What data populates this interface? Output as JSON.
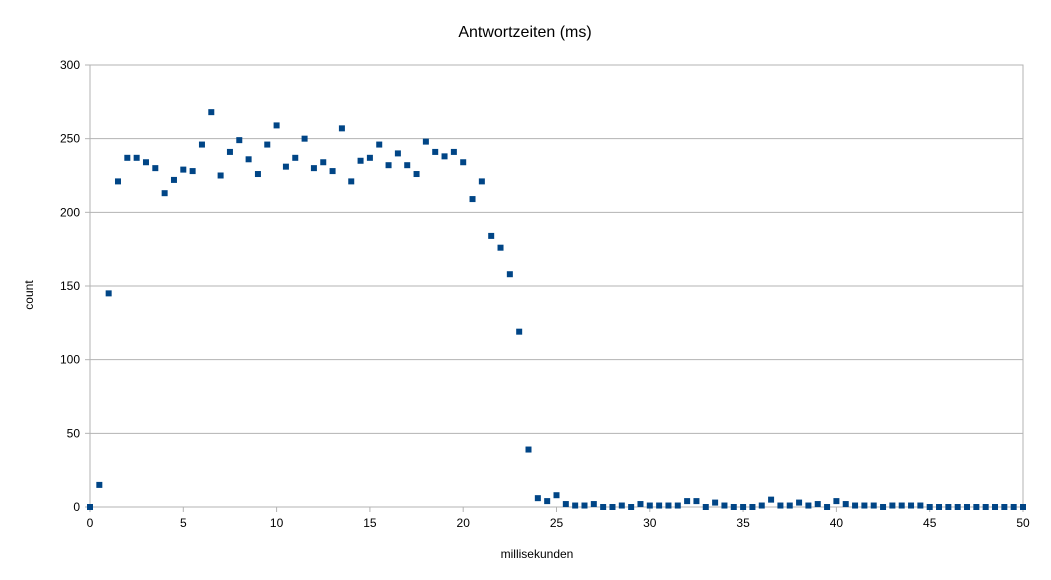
{
  "chart_data": {
    "type": "scatter",
    "title": "Antwortzeiten (ms)",
    "xlabel": "millisekunden",
    "ylabel": "count",
    "xlim": [
      0,
      50
    ],
    "ylim": [
      0,
      300
    ],
    "xticks": [
      0,
      5,
      10,
      15,
      20,
      25,
      30,
      35,
      40,
      45,
      50
    ],
    "yticks": [
      0,
      50,
      100,
      150,
      200,
      250,
      300
    ],
    "grid": {
      "horizontal": true,
      "vertical": false
    },
    "legend": "none",
    "marker_color": "#004586",
    "gridline_color": "#b3b3b3",
    "series": [
      {
        "points": [
          [
            0,
            0
          ],
          [
            0.5,
            15
          ],
          [
            1,
            145
          ],
          [
            1.5,
            221
          ],
          [
            2,
            237
          ],
          [
            2.5,
            237
          ],
          [
            3,
            234
          ],
          [
            3.5,
            230
          ],
          [
            4,
            213
          ],
          [
            4.5,
            222
          ],
          [
            5,
            229
          ],
          [
            5.5,
            228
          ],
          [
            6,
            246
          ],
          [
            6.5,
            268
          ],
          [
            7,
            225
          ],
          [
            7.5,
            241
          ],
          [
            8,
            249
          ],
          [
            8.5,
            236
          ],
          [
            9,
            226
          ],
          [
            9.5,
            246
          ],
          [
            10,
            259
          ],
          [
            10.5,
            231
          ],
          [
            11,
            237
          ],
          [
            11.5,
            250
          ],
          [
            12,
            230
          ],
          [
            12.5,
            234
          ],
          [
            13,
            228
          ],
          [
            13.5,
            257
          ],
          [
            14,
            221
          ],
          [
            14.5,
            235
          ],
          [
            15,
            237
          ],
          [
            15.5,
            246
          ],
          [
            16,
            232
          ],
          [
            16.5,
            240
          ],
          [
            17,
            232
          ],
          [
            17.5,
            226
          ],
          [
            18,
            248
          ],
          [
            18.5,
            241
          ],
          [
            19,
            238
          ],
          [
            19.5,
            241
          ],
          [
            20,
            234
          ],
          [
            20.5,
            209
          ],
          [
            21,
            221
          ],
          [
            21.5,
            184
          ],
          [
            22,
            176
          ],
          [
            22.5,
            158
          ],
          [
            23,
            119
          ],
          [
            23.5,
            39
          ],
          [
            24,
            6
          ],
          [
            24.5,
            4
          ],
          [
            25,
            8
          ],
          [
            25.5,
            2
          ],
          [
            26,
            1
          ],
          [
            26.5,
            1
          ],
          [
            27,
            2
          ],
          [
            27.5,
            0
          ],
          [
            28,
            0
          ],
          [
            28.5,
            1
          ],
          [
            29,
            0
          ],
          [
            29.5,
            2
          ],
          [
            30,
            1
          ],
          [
            30.5,
            1
          ],
          [
            31,
            1
          ],
          [
            31.5,
            1
          ],
          [
            32,
            4
          ],
          [
            32.5,
            4
          ],
          [
            33,
            0
          ],
          [
            33.5,
            3
          ],
          [
            34,
            1
          ],
          [
            34.5,
            0
          ],
          [
            35,
            0
          ],
          [
            35.5,
            0
          ],
          [
            36,
            1
          ],
          [
            36.5,
            5
          ],
          [
            37,
            1
          ],
          [
            37.5,
            1
          ],
          [
            38,
            3
          ],
          [
            38.5,
            1
          ],
          [
            39,
            2
          ],
          [
            39.5,
            0
          ],
          [
            40,
            4
          ],
          [
            40.5,
            2
          ],
          [
            41,
            1
          ],
          [
            41.5,
            1
          ],
          [
            42,
            1
          ],
          [
            42.5,
            0
          ],
          [
            43,
            1
          ],
          [
            43.5,
            1
          ],
          [
            44,
            1
          ],
          [
            44.5,
            1
          ],
          [
            45,
            0
          ],
          [
            45.5,
            0
          ],
          [
            46,
            0
          ],
          [
            46.5,
            0
          ],
          [
            47,
            0
          ],
          [
            47.5,
            0
          ],
          [
            48,
            0
          ],
          [
            48.5,
            0
          ],
          [
            49,
            0
          ],
          [
            49.5,
            0
          ],
          [
            50,
            0
          ]
        ]
      }
    ]
  }
}
